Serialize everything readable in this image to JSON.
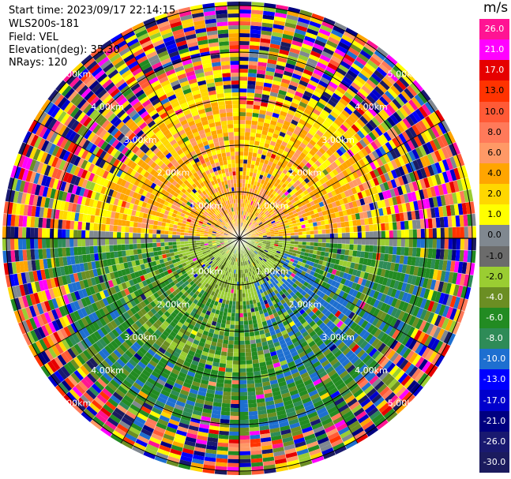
{
  "info": {
    "start_time": "Start time: 2023/09/17 22:14:15",
    "site": "WLS200s-181",
    "field": "Field: VEL",
    "elevation": "Elevation(deg): 35.30",
    "nrays": "NRays: 120"
  },
  "range_rings": {
    "labels": [
      "1.00km",
      "2.00km",
      "3.00km",
      "4.00km",
      "5.00km"
    ]
  },
  "colorbar": {
    "unit": "m/s",
    "ticks": [
      "26.0",
      "21.0",
      "17.0",
      "13.0",
      "10.0",
      "8.0",
      "6.0",
      "4.0",
      "2.0",
      "1.0",
      "0.0",
      "-1.0",
      "-2.0",
      "-4.0",
      "-6.0",
      "-8.0",
      "-10.0",
      "-13.0",
      "-17.0",
      "-21.0",
      "-26.0",
      "-30.0"
    ],
    "colors": [
      "#ff1493",
      "#ff00ff",
      "#e60000",
      "#ff3300",
      "#ff5a36",
      "#ff7a5a",
      "#ff9966",
      "#ffa500",
      "#ffd700",
      "#ffff00",
      "#808890",
      "#6b6b6b",
      "#9acd32",
      "#6b8e23",
      "#228b22",
      "#2e8b57",
      "#1e6fd0",
      "#0000ff",
      "#0000cd",
      "#000080",
      "#191970",
      "#1b1b5e"
    ]
  }
}
